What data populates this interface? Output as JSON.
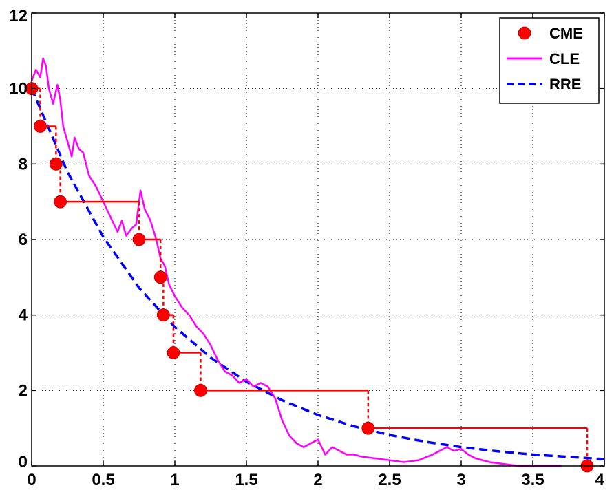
{
  "chart_data": {
    "type": "line",
    "title": "",
    "xlabel": "",
    "ylabel": "",
    "xlim": [
      0,
      4
    ],
    "ylim": [
      0,
      12
    ],
    "grid": true,
    "legend_position": "top-right",
    "x_ticks": [
      "0",
      "0.5",
      "1",
      "1.5",
      "2",
      "2.5",
      "3",
      "3.5",
      "4"
    ],
    "y_ticks": [
      "0",
      "2",
      "4",
      "6",
      "8",
      "10",
      "12"
    ],
    "colors": {
      "CME": "#ff0000",
      "CLE": "#ff00ff",
      "RRE": "#0000ff"
    },
    "series": [
      {
        "name": "CME",
        "style": "markers with stair step",
        "points": [
          {
            "x": 0.0,
            "y": 10
          },
          {
            "x": 0.06,
            "y": 9
          },
          {
            "x": 0.17,
            "y": 8
          },
          {
            "x": 0.2,
            "y": 7
          },
          {
            "x": 0.75,
            "y": 6
          },
          {
            "x": 0.9,
            "y": 5
          },
          {
            "x": 0.92,
            "y": 4
          },
          {
            "x": 0.99,
            "y": 3
          },
          {
            "x": 1.18,
            "y": 2
          },
          {
            "x": 2.35,
            "y": 1
          },
          {
            "x": 3.88,
            "y": 0
          }
        ]
      },
      {
        "name": "CLE",
        "style": "solid line",
        "points": [
          {
            "x": 0.0,
            "y": 10.2
          },
          {
            "x": 0.03,
            "y": 10.5
          },
          {
            "x": 0.06,
            "y": 10.3
          },
          {
            "x": 0.08,
            "y": 10.8
          },
          {
            "x": 0.1,
            "y": 10.6
          },
          {
            "x": 0.12,
            "y": 10.0
          },
          {
            "x": 0.15,
            "y": 9.6
          },
          {
            "x": 0.18,
            "y": 10.1
          },
          {
            "x": 0.2,
            "y": 9.7
          },
          {
            "x": 0.22,
            "y": 9.0
          },
          {
            "x": 0.25,
            "y": 8.6
          },
          {
            "x": 0.28,
            "y": 8.2
          },
          {
            "x": 0.3,
            "y": 8.7
          },
          {
            "x": 0.33,
            "y": 8.4
          },
          {
            "x": 0.36,
            "y": 8.3
          },
          {
            "x": 0.4,
            "y": 7.7
          },
          {
            "x": 0.45,
            "y": 7.4
          },
          {
            "x": 0.5,
            "y": 7.0
          },
          {
            "x": 0.55,
            "y": 6.6
          },
          {
            "x": 0.6,
            "y": 6.2
          },
          {
            "x": 0.63,
            "y": 6.5
          },
          {
            "x": 0.66,
            "y": 6.1
          },
          {
            "x": 0.7,
            "y": 6.3
          },
          {
            "x": 0.73,
            "y": 6.4
          },
          {
            "x": 0.76,
            "y": 7.3
          },
          {
            "x": 0.79,
            "y": 6.8
          },
          {
            "x": 0.83,
            "y": 6.5
          },
          {
            "x": 0.87,
            "y": 6.0
          },
          {
            "x": 0.9,
            "y": 5.5
          },
          {
            "x": 0.93,
            "y": 5.3
          },
          {
            "x": 0.96,
            "y": 4.8
          },
          {
            "x": 1.0,
            "y": 4.5
          },
          {
            "x": 1.05,
            "y": 4.2
          },
          {
            "x": 1.1,
            "y": 4.0
          },
          {
            "x": 1.15,
            "y": 3.7
          },
          {
            "x": 1.2,
            "y": 3.5
          },
          {
            "x": 1.25,
            "y": 3.2
          },
          {
            "x": 1.3,
            "y": 2.8
          },
          {
            "x": 1.35,
            "y": 2.5
          },
          {
            "x": 1.4,
            "y": 2.4
          },
          {
            "x": 1.45,
            "y": 2.2
          },
          {
            "x": 1.5,
            "y": 2.3
          },
          {
            "x": 1.55,
            "y": 2.1
          },
          {
            "x": 1.6,
            "y": 2.2
          },
          {
            "x": 1.65,
            "y": 2.1
          },
          {
            "x": 1.7,
            "y": 1.8
          },
          {
            "x": 1.75,
            "y": 1.2
          },
          {
            "x": 1.8,
            "y": 0.8
          },
          {
            "x": 1.85,
            "y": 0.6
          },
          {
            "x": 1.9,
            "y": 0.5
          },
          {
            "x": 1.95,
            "y": 0.6
          },
          {
            "x": 2.0,
            "y": 0.7
          },
          {
            "x": 2.05,
            "y": 0.3
          },
          {
            "x": 2.1,
            "y": 0.5
          },
          {
            "x": 2.15,
            "y": 0.4
          },
          {
            "x": 2.2,
            "y": 0.3
          },
          {
            "x": 2.25,
            "y": 0.3
          },
          {
            "x": 2.3,
            "y": 0.25
          },
          {
            "x": 2.4,
            "y": 0.2
          },
          {
            "x": 2.5,
            "y": 0.15
          },
          {
            "x": 2.6,
            "y": 0.1
          },
          {
            "x": 2.7,
            "y": 0.15
          },
          {
            "x": 2.8,
            "y": 0.3
          },
          {
            "x": 2.85,
            "y": 0.4
          },
          {
            "x": 2.9,
            "y": 0.5
          },
          {
            "x": 2.95,
            "y": 0.4
          },
          {
            "x": 3.0,
            "y": 0.45
          },
          {
            "x": 3.05,
            "y": 0.3
          },
          {
            "x": 3.1,
            "y": 0.2
          },
          {
            "x": 3.2,
            "y": 0.1
          },
          {
            "x": 3.3,
            "y": 0.05
          },
          {
            "x": 3.4,
            "y": 0.0
          },
          {
            "x": 3.5,
            "y": 0.0
          },
          {
            "x": 3.7,
            "y": 0.0
          }
        ]
      },
      {
        "name": "RRE",
        "style": "dashed line",
        "points": [
          {
            "x": 0.0,
            "y": 10.0
          },
          {
            "x": 0.25,
            "y": 7.79
          },
          {
            "x": 0.5,
            "y": 6.07
          },
          {
            "x": 0.75,
            "y": 4.72
          },
          {
            "x": 1.0,
            "y": 3.68
          },
          {
            "x": 1.25,
            "y": 2.87
          },
          {
            "x": 1.5,
            "y": 2.23
          },
          {
            "x": 1.75,
            "y": 1.74
          },
          {
            "x": 2.0,
            "y": 1.35
          },
          {
            "x": 2.25,
            "y": 1.05
          },
          {
            "x": 2.5,
            "y": 0.82
          },
          {
            "x": 2.75,
            "y": 0.64
          },
          {
            "x": 3.0,
            "y": 0.5
          },
          {
            "x": 3.25,
            "y": 0.39
          },
          {
            "x": 3.5,
            "y": 0.3
          },
          {
            "x": 3.75,
            "y": 0.24
          },
          {
            "x": 4.0,
            "y": 0.18
          }
        ]
      }
    ]
  }
}
